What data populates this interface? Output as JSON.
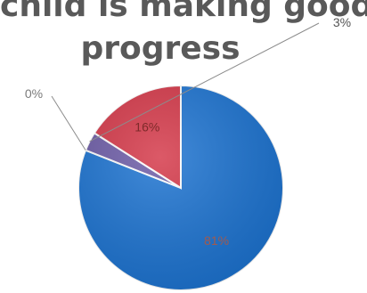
{
  "chart_data": {
    "type": "pie",
    "title_lines": [
      "child is making good",
      "progress"
    ],
    "slices": [
      {
        "label": "81%",
        "value": 81,
        "color": "#1a72d1"
      },
      {
        "label": "0%",
        "value": 0,
        "color": "#8fae3a"
      },
      {
        "label": "3%",
        "value": 3,
        "color": "#6b5aa6"
      },
      {
        "label": "16%",
        "value": 16,
        "color": "#d43546"
      }
    ]
  }
}
